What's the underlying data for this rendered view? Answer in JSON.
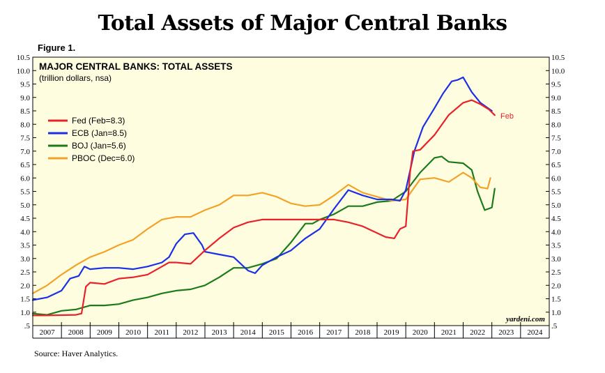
{
  "title": "Total Assets of Major Central Banks",
  "figure_label": "Figure 1.",
  "source": "Source: Haver Analytics.",
  "chart_data": {
    "type": "line",
    "title": "MAJOR CENTRAL BANKS: TOTAL ASSETS",
    "subtitle": "(trillion dollars, nsa)",
    "credit": "yardeni.com",
    "ylim": [
      0.5,
      10.5
    ],
    "ytick_labels": [
      ".5",
      "1.0",
      "1.5",
      "2.0",
      "2.5",
      "3.0",
      "3.5",
      "4.0",
      "4.5",
      "5.0",
      "5.5",
      "6.0",
      "6.5",
      "7.0",
      "7.5",
      "8.0",
      "8.5",
      "9.0",
      "9.5",
      "10.0",
      "10.5"
    ],
    "xlim": [
      2007,
      2025
    ],
    "year_labels": [
      "2007",
      "2008",
      "2009",
      "2010",
      "2011",
      "2012",
      "2013",
      "2014",
      "2015",
      "2016",
      "2017",
      "2018",
      "2019",
      "2020",
      "2021",
      "2022",
      "2023",
      "2024"
    ],
    "legend_position": "upper-left",
    "annotation": {
      "text": "Feb",
      "color": "#e8212b"
    },
    "series": [
      {
        "name": "Fed",
        "label": "Fed (Feb=8.3)",
        "color": "#e8212b",
        "x": [
          2007.0,
          2007.5,
          2008.0,
          2008.5,
          2008.7,
          2008.85,
          2009.0,
          2009.5,
          2010.0,
          2010.5,
          2011.0,
          2011.5,
          2011.75,
          2012.0,
          2012.5,
          2013.0,
          2013.5,
          2014.0,
          2014.5,
          2015.0,
          2015.5,
          2016.0,
          2016.5,
          2017.0,
          2017.5,
          2018.0,
          2018.5,
          2019.0,
          2019.3,
          2019.6,
          2019.8,
          2020.0,
          2020.15,
          2020.25,
          2020.5,
          2021.0,
          2021.5,
          2022.0,
          2022.3,
          2022.6,
          2022.9,
          2023.1
        ],
        "y": [
          0.88,
          0.88,
          0.89,
          0.9,
          0.95,
          1.95,
          2.1,
          2.05,
          2.25,
          2.3,
          2.4,
          2.7,
          2.85,
          2.85,
          2.8,
          3.3,
          3.75,
          4.15,
          4.35,
          4.45,
          4.45,
          4.45,
          4.45,
          4.45,
          4.45,
          4.35,
          4.2,
          3.95,
          3.8,
          3.75,
          4.1,
          4.2,
          6.2,
          7.0,
          7.05,
          7.6,
          8.35,
          8.8,
          8.9,
          8.75,
          8.55,
          8.34
        ]
      },
      {
        "name": "ECB",
        "label": "ECB (Jan=8.5)",
        "color": "#1b2fe6",
        "x": [
          2007.0,
          2007.5,
          2008.0,
          2008.3,
          2008.6,
          2008.8,
          2009.0,
          2009.5,
          2010.0,
          2010.5,
          2011.0,
          2011.5,
          2011.75,
          2012.0,
          2012.3,
          2012.6,
          2012.9,
          2013.0,
          2013.5,
          2014.0,
          2014.5,
          2014.75,
          2015.0,
          2015.5,
          2016.0,
          2016.5,
          2017.0,
          2017.5,
          2018.0,
          2018.5,
          2019.0,
          2019.5,
          2019.8,
          2020.0,
          2020.3,
          2020.6,
          2021.0,
          2021.3,
          2021.6,
          2021.8,
          2022.0,
          2022.3,
          2022.6,
          2023.0
        ],
        "y": [
          1.45,
          1.55,
          1.8,
          2.25,
          2.35,
          2.7,
          2.6,
          2.65,
          2.65,
          2.6,
          2.7,
          2.85,
          3.05,
          3.55,
          3.9,
          3.95,
          3.5,
          3.25,
          3.15,
          3.05,
          2.55,
          2.45,
          2.75,
          3.05,
          3.3,
          3.75,
          4.1,
          4.85,
          5.55,
          5.35,
          5.2,
          5.2,
          5.15,
          5.55,
          7.0,
          7.9,
          8.6,
          9.15,
          9.6,
          9.65,
          9.75,
          9.2,
          8.8,
          8.5
        ]
      },
      {
        "name": "BOJ",
        "label": "BOJ (Jan=5.6)",
        "color": "#1a7b1a",
        "x": [
          2007.0,
          2007.5,
          2008.0,
          2008.5,
          2009.0,
          2009.5,
          2010.0,
          2010.5,
          2011.0,
          2011.5,
          2012.0,
          2012.5,
          2013.0,
          2013.5,
          2014.0,
          2014.5,
          2015.0,
          2015.5,
          2016.0,
          2016.5,
          2016.75,
          2017.0,
          2017.5,
          2018.0,
          2018.5,
          2019.0,
          2019.5,
          2020.0,
          2020.5,
          2021.0,
          2021.25,
          2021.5,
          2022.0,
          2022.3,
          2022.5,
          2022.75,
          2023.0,
          2023.1
        ],
        "y": [
          0.95,
          0.9,
          1.05,
          1.1,
          1.25,
          1.25,
          1.3,
          1.45,
          1.55,
          1.7,
          1.8,
          1.85,
          2.0,
          2.3,
          2.65,
          2.65,
          2.8,
          3.0,
          3.6,
          4.3,
          4.3,
          4.45,
          4.65,
          4.95,
          4.95,
          5.1,
          5.15,
          5.5,
          6.2,
          6.75,
          6.8,
          6.6,
          6.55,
          6.3,
          5.5,
          4.8,
          4.9,
          5.6
        ]
      },
      {
        "name": "PBOC",
        "label": "PBOC (Dec=6.0)",
        "color": "#f2a227",
        "x": [
          2007.0,
          2007.5,
          2008.0,
          2008.5,
          2009.0,
          2009.5,
          2010.0,
          2010.5,
          2011.0,
          2011.5,
          2012.0,
          2012.5,
          2013.0,
          2013.5,
          2014.0,
          2014.5,
          2015.0,
          2015.5,
          2016.0,
          2016.5,
          2017.0,
          2017.5,
          2018.0,
          2018.5,
          2019.0,
          2019.5,
          2020.0,
          2020.5,
          2021.0,
          2021.5,
          2022.0,
          2022.3,
          2022.6,
          2022.85,
          2022.95
        ],
        "y": [
          1.7,
          2.0,
          2.4,
          2.75,
          3.05,
          3.25,
          3.5,
          3.7,
          4.1,
          4.45,
          4.55,
          4.55,
          4.8,
          5.0,
          5.35,
          5.35,
          5.45,
          5.3,
          5.05,
          4.95,
          5.0,
          5.35,
          5.75,
          5.45,
          5.3,
          5.15,
          5.2,
          5.95,
          6.0,
          5.85,
          6.2,
          6.0,
          5.65,
          5.6,
          6.0
        ]
      }
    ]
  }
}
